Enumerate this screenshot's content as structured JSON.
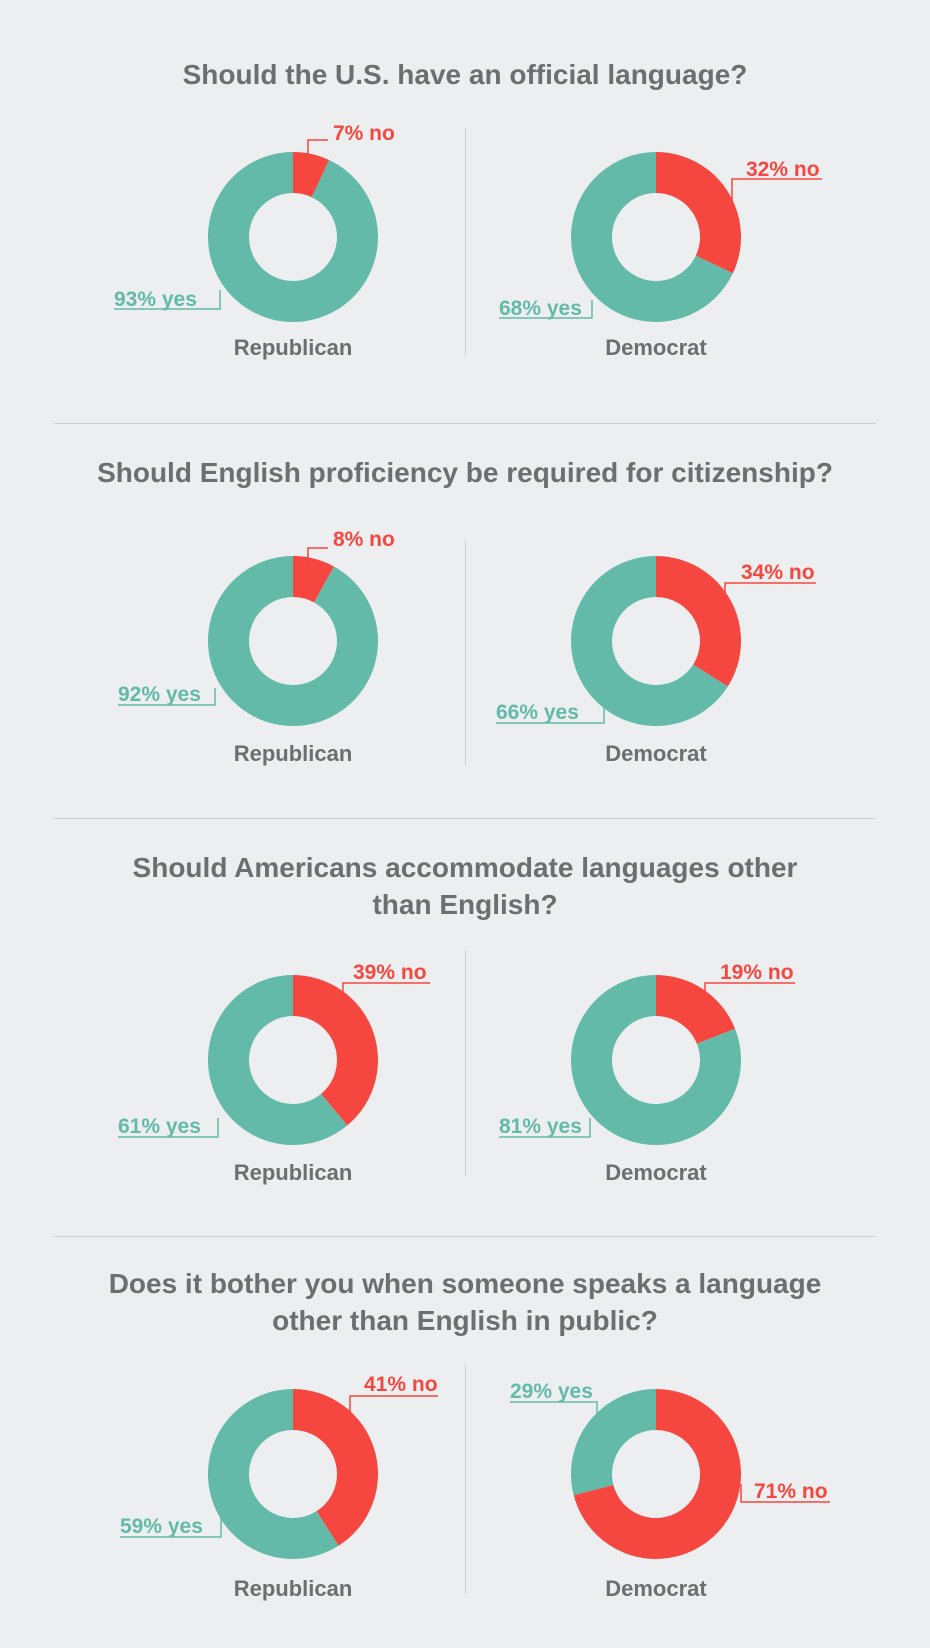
{
  "colors": {
    "yes": "#63baa8",
    "no": "#f5473f",
    "background": "#eceef0",
    "divider": "#cdd0d3",
    "text": "#6d6e71"
  },
  "sections": [
    {
      "question": [
        "Should the U.S. have an official language?"
      ]
    },
    {
      "question": [
        "Should English proficiency be required for citizenship?"
      ]
    },
    {
      "question": [
        "Should Americans accommodate languages other",
        "than English?"
      ]
    },
    {
      "question": [
        "Does it bother you when someone speaks a language",
        "other than English in public?"
      ]
    }
  ],
  "chart_data": [
    {
      "type": "pie",
      "title": "Should the U.S. have an official language?",
      "groups": [
        {
          "name": "Republican",
          "slices": [
            {
              "label": "yes",
              "value": 93,
              "text": "93% yes"
            },
            {
              "label": "no",
              "value": 7,
              "text": "7% no"
            }
          ]
        },
        {
          "name": "Democrat",
          "slices": [
            {
              "label": "yes",
              "value": 68,
              "text": "68% yes"
            },
            {
              "label": "no",
              "value": 32,
              "text": "32% no"
            }
          ]
        }
      ]
    },
    {
      "type": "pie",
      "title": "Should English proficiency be required for citizenship?",
      "groups": [
        {
          "name": "Republican",
          "slices": [
            {
              "label": "yes",
              "value": 92,
              "text": "92% yes"
            },
            {
              "label": "no",
              "value": 8,
              "text": "8% no"
            }
          ]
        },
        {
          "name": "Democrat",
          "slices": [
            {
              "label": "yes",
              "value": 66,
              "text": "66% yes"
            },
            {
              "label": "no",
              "value": 34,
              "text": "34% no"
            }
          ]
        }
      ]
    },
    {
      "type": "pie",
      "title": "Should Americans accommodate languages other than English?",
      "groups": [
        {
          "name": "Republican",
          "slices": [
            {
              "label": "yes",
              "value": 61,
              "text": "61% yes"
            },
            {
              "label": "no",
              "value": 39,
              "text": "39% no"
            }
          ]
        },
        {
          "name": "Democrat",
          "slices": [
            {
              "label": "yes",
              "value": 81,
              "text": "81% yes"
            },
            {
              "label": "no",
              "value": 19,
              "text": "19% no"
            }
          ]
        }
      ]
    },
    {
      "type": "pie",
      "title": "Does it bother you when someone speaks a language other than English in public?",
      "groups": [
        {
          "name": "Republican",
          "slices": [
            {
              "label": "yes",
              "value": 59,
              "text": "59% yes"
            },
            {
              "label": "no",
              "value": 41,
              "text": "41% no"
            }
          ]
        },
        {
          "name": "Democrat",
          "slices": [
            {
              "label": "yes",
              "value": 29,
              "text": "29% yes"
            },
            {
              "label": "no",
              "value": 71,
              "text": "71% no"
            }
          ]
        }
      ]
    }
  ]
}
